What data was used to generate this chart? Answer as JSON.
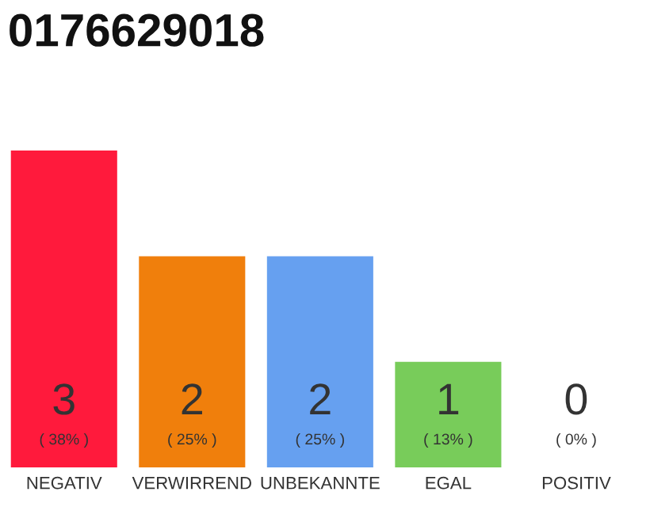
{
  "chart_data": {
    "type": "bar",
    "title": "0176629018",
    "categories": [
      "NEGATIV",
      "VERWIRREND",
      "UNBEKANNTE",
      "EGAL",
      "POSITIV"
    ],
    "values": [
      3,
      2,
      2,
      1,
      0
    ],
    "colors": [
      "#ff1a3c",
      "#f07f0c",
      "#66a0f0",
      "#78cc5a",
      "#cccccc"
    ],
    "ylim": [
      0,
      3
    ],
    "data_labels": true,
    "grid": false,
    "legend": false,
    "tick_labels": "x",
    "annotations": [
      {
        "text": "( 38% )",
        "x": "NEGATIV",
        "y": 0
      },
      {
        "text": "( 25% )",
        "x": "VERWIRREND",
        "y": 0
      },
      {
        "text": "( 25% )",
        "x": "UNBEKANNTE",
        "y": 0
      },
      {
        "text": "( 13% )",
        "x": "EGAL",
        "y": 0
      },
      {
        "text": "( 0% )",
        "x": "POSITIV",
        "y": 0
      }
    ]
  }
}
